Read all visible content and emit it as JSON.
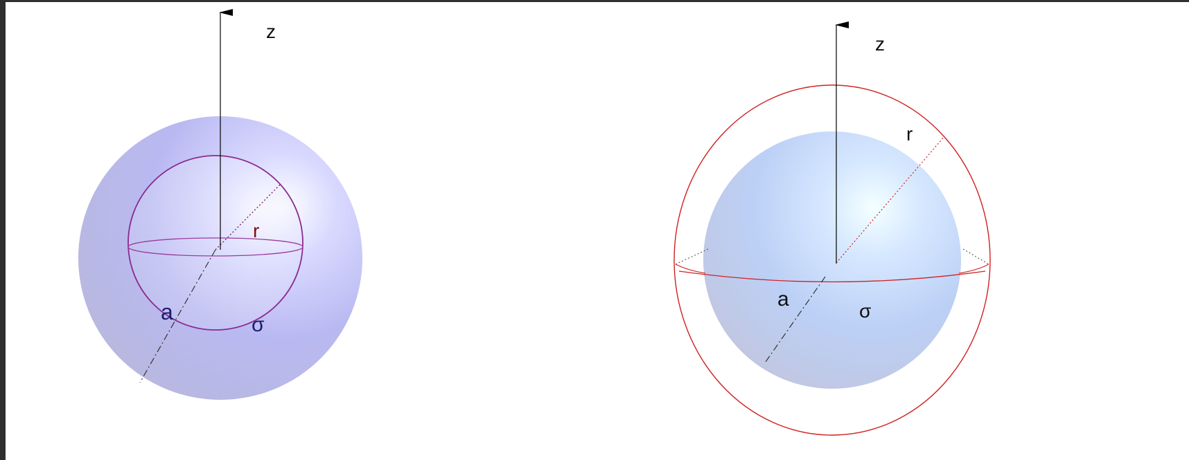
{
  "figure_left": {
    "axis_label": "z",
    "radius_label": "r",
    "a_label": "a",
    "sigma_label": "σ",
    "colors": {
      "outer_sphere": "#b7b7f5",
      "inner_shell_stroke": "#8a2b8e",
      "radius_stroke": "#6b1c5a",
      "r_text": "#7a1010",
      "a_sigma_text": "#1a1f6e",
      "axis": "#000000"
    }
  },
  "figure_right": {
    "axis_label": "z",
    "radius_label": "r",
    "a_label": "a",
    "sigma_label": "σ",
    "colors": {
      "inner_sphere": "#bcd0f5",
      "outer_shell_stroke": "#d02020",
      "radius_stroke": "#d02020",
      "text": "#111111",
      "axis": "#000000"
    }
  }
}
